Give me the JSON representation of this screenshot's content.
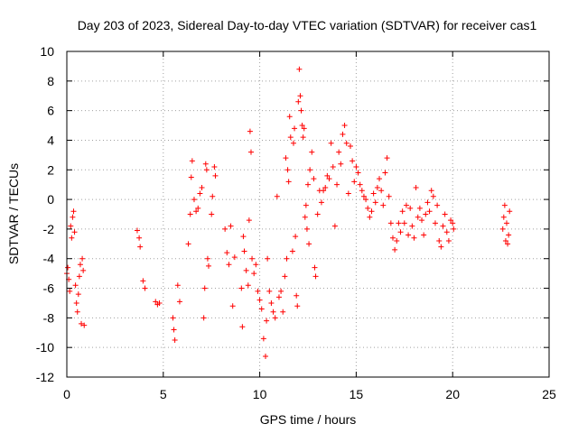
{
  "chart_data": {
    "type": "scatter",
    "title": "Day 203 of 2023, Sidereal Day-to-day VTEC variation (SDTVAR) for receiver cas1",
    "xlabel": "GPS time / hours",
    "ylabel": "SDTVAR / TECUs",
    "xlim": [
      0,
      25
    ],
    "ylim": [
      -12,
      10
    ],
    "x_ticks": [
      "0",
      "5",
      "10",
      "15",
      "20",
      "25"
    ],
    "y_ticks": [
      "10",
      "8",
      "6",
      "4",
      "2",
      "0",
      "-2",
      "-4",
      "-6",
      "-8",
      "-10",
      "-12"
    ],
    "grid": true,
    "marker": "+",
    "series": [
      {
        "name": "SDTVAR",
        "color": "#ff0000",
        "segments": [
          {
            "x": 0.0,
            "y": -5.0
          },
          {
            "x": 0.05,
            "y": -4.6
          },
          {
            "x": 0.1,
            "y": -5.4
          },
          {
            "x": 0.15,
            "y": -6.2
          },
          {
            "x": 0.2,
            "y": -1.8
          },
          {
            "x": 0.25,
            "y": -2.6
          },
          {
            "x": 0.3,
            "y": -1.2
          },
          {
            "x": 0.35,
            "y": -0.8
          },
          {
            "x": 0.4,
            "y": -2.2
          },
          {
            "x": 0.45,
            "y": -5.8
          },
          {
            "x": 0.5,
            "y": -7.0
          },
          {
            "x": 0.55,
            "y": -7.6
          },
          {
            "x": 0.6,
            "y": -6.4
          },
          {
            "x": 0.65,
            "y": -5.2
          },
          {
            "x": 0.7,
            "y": -4.4
          },
          {
            "x": 0.75,
            "y": -8.4
          },
          {
            "x": 0.8,
            "y": -4.0
          },
          {
            "x": 0.85,
            "y": -4.8
          },
          {
            "x": 0.9,
            "y": -8.5
          },
          {
            "x": 3.65,
            "y": -2.1
          },
          {
            "x": 3.75,
            "y": -2.6
          },
          {
            "x": 3.8,
            "y": -3.2
          },
          {
            "x": 3.95,
            "y": -5.5
          },
          {
            "x": 4.05,
            "y": -6.0
          },
          {
            "x": 4.6,
            "y": -6.9
          },
          {
            "x": 4.7,
            "y": -7.1
          },
          {
            "x": 4.8,
            "y": -7.0
          },
          {
            "x": 5.5,
            "y": -8.0
          },
          {
            "x": 5.55,
            "y": -8.8
          },
          {
            "x": 5.6,
            "y": -9.5
          },
          {
            "x": 5.75,
            "y": -5.8
          },
          {
            "x": 5.85,
            "y": -6.9
          },
          {
            "x": 6.3,
            "y": -3.0
          },
          {
            "x": 6.4,
            "y": -1.0
          },
          {
            "x": 6.45,
            "y": 1.5
          },
          {
            "x": 6.5,
            "y": 2.6
          },
          {
            "x": 6.6,
            "y": 0.0
          },
          {
            "x": 6.7,
            "y": -0.8
          },
          {
            "x": 6.8,
            "y": -0.6
          },
          {
            "x": 6.9,
            "y": 0.4
          },
          {
            "x": 7.0,
            "y": 0.8
          },
          {
            "x": 7.1,
            "y": -8.0
          },
          {
            "x": 7.15,
            "y": -6.0
          },
          {
            "x": 7.2,
            "y": 2.4
          },
          {
            "x": 7.25,
            "y": 2.0
          },
          {
            "x": 7.3,
            "y": -4.0
          },
          {
            "x": 7.35,
            "y": -4.5
          },
          {
            "x": 7.5,
            "y": -1.0
          },
          {
            "x": 7.55,
            "y": 0.2
          },
          {
            "x": 7.65,
            "y": 2.2
          },
          {
            "x": 7.7,
            "y": 1.6
          },
          {
            "x": 8.2,
            "y": -2.0
          },
          {
            "x": 8.3,
            "y": -3.6
          },
          {
            "x": 8.4,
            "y": -4.4
          },
          {
            "x": 8.5,
            "y": -1.8
          },
          {
            "x": 8.6,
            "y": -7.2
          },
          {
            "x": 8.7,
            "y": -3.9
          },
          {
            "x": 9.05,
            "y": -6.0
          },
          {
            "x": 9.1,
            "y": -8.6
          },
          {
            "x": 9.15,
            "y": -2.5
          },
          {
            "x": 9.2,
            "y": -3.5
          },
          {
            "x": 9.3,
            "y": -4.8
          },
          {
            "x": 9.4,
            "y": -5.8
          },
          {
            "x": 9.45,
            "y": -1.4
          },
          {
            "x": 9.5,
            "y": 4.6
          },
          {
            "x": 9.55,
            "y": 3.2
          },
          {
            "x": 9.6,
            "y": -4.0
          },
          {
            "x": 9.7,
            "y": -5.0
          },
          {
            "x": 9.8,
            "y": -4.4
          },
          {
            "x": 9.9,
            "y": -6.2
          },
          {
            "x": 10.0,
            "y": -6.8
          },
          {
            "x": 10.1,
            "y": -7.4
          },
          {
            "x": 10.2,
            "y": -9.4
          },
          {
            "x": 10.3,
            "y": -10.6
          },
          {
            "x": 10.35,
            "y": -8.2
          },
          {
            "x": 10.4,
            "y": -4.0
          },
          {
            "x": 10.5,
            "y": -6.2
          },
          {
            "x": 10.6,
            "y": -7.0
          },
          {
            "x": 10.7,
            "y": -7.6
          },
          {
            "x": 10.8,
            "y": -8.0
          },
          {
            "x": 10.9,
            "y": 0.2
          },
          {
            "x": 11.0,
            "y": -6.6
          },
          {
            "x": 11.1,
            "y": -6.2
          },
          {
            "x": 11.2,
            "y": -7.6
          },
          {
            "x": 11.3,
            "y": -5.2
          },
          {
            "x": 11.35,
            "y": 2.8
          },
          {
            "x": 11.4,
            "y": -4.0
          },
          {
            "x": 11.45,
            "y": 2.0
          },
          {
            "x": 11.5,
            "y": 1.2
          },
          {
            "x": 11.55,
            "y": 5.6
          },
          {
            "x": 11.6,
            "y": 4.2
          },
          {
            "x": 11.7,
            "y": -3.5
          },
          {
            "x": 11.75,
            "y": 3.8
          },
          {
            "x": 11.8,
            "y": 4.8
          },
          {
            "x": 11.85,
            "y": -2.5
          },
          {
            "x": 11.9,
            "y": -6.5
          },
          {
            "x": 11.95,
            "y": -7.2
          },
          {
            "x": 12.0,
            "y": 6.6
          },
          {
            "x": 12.05,
            "y": 8.8
          },
          {
            "x": 12.1,
            "y": 7.0
          },
          {
            "x": 12.15,
            "y": 6.0
          },
          {
            "x": 12.2,
            "y": 5.0
          },
          {
            "x": 12.25,
            "y": 4.2
          },
          {
            "x": 12.3,
            "y": 4.8
          },
          {
            "x": 12.35,
            "y": -1.2
          },
          {
            "x": 12.4,
            "y": -0.4
          },
          {
            "x": 12.45,
            "y": -2.0
          },
          {
            "x": 12.5,
            "y": 1.0
          },
          {
            "x": 12.55,
            "y": -3.0
          },
          {
            "x": 12.6,
            "y": 2.0
          },
          {
            "x": 12.7,
            "y": 3.2
          },
          {
            "x": 12.8,
            "y": 1.4
          },
          {
            "x": 12.85,
            "y": -4.6
          },
          {
            "x": 12.9,
            "y": -5.2
          },
          {
            "x": 13.0,
            "y": -1.0
          },
          {
            "x": 13.1,
            "y": 0.6
          },
          {
            "x": 13.2,
            "y": -0.2
          },
          {
            "x": 13.3,
            "y": 0.6
          },
          {
            "x": 13.4,
            "y": 0.8
          },
          {
            "x": 13.5,
            "y": 1.6
          },
          {
            "x": 13.6,
            "y": 1.4
          },
          {
            "x": 13.7,
            "y": 3.8
          },
          {
            "x": 13.8,
            "y": 2.2
          },
          {
            "x": 13.9,
            "y": -1.8
          },
          {
            "x": 14.0,
            "y": 1.0
          },
          {
            "x": 14.1,
            "y": 3.2
          },
          {
            "x": 14.2,
            "y": 2.4
          },
          {
            "x": 14.3,
            "y": 4.4
          },
          {
            "x": 14.4,
            "y": 5.0
          },
          {
            "x": 14.5,
            "y": 3.8
          },
          {
            "x": 14.6,
            "y": 0.4
          },
          {
            "x": 14.7,
            "y": 3.6
          },
          {
            "x": 14.8,
            "y": 2.6
          },
          {
            "x": 14.9,
            "y": 1.2
          },
          {
            "x": 15.0,
            "y": 2.2
          },
          {
            "x": 15.1,
            "y": 1.8
          },
          {
            "x": 15.2,
            "y": 1.0
          },
          {
            "x": 15.3,
            "y": 0.6
          },
          {
            "x": 15.4,
            "y": 0.2
          },
          {
            "x": 15.5,
            "y": 0.0
          },
          {
            "x": 15.6,
            "y": -0.6
          },
          {
            "x": 15.7,
            "y": -1.2
          },
          {
            "x": 15.8,
            "y": -0.8
          },
          {
            "x": 15.9,
            "y": 0.4
          },
          {
            "x": 16.0,
            "y": -0.2
          },
          {
            "x": 16.1,
            "y": 0.8
          },
          {
            "x": 16.2,
            "y": 1.4
          },
          {
            "x": 16.3,
            "y": 0.6
          },
          {
            "x": 16.4,
            "y": -0.4
          },
          {
            "x": 16.5,
            "y": 1.8
          },
          {
            "x": 16.6,
            "y": 2.8
          },
          {
            "x": 16.7,
            "y": 0.2
          },
          {
            "x": 16.8,
            "y": -1.6
          },
          {
            "x": 16.9,
            "y": -2.6
          },
          {
            "x": 17.0,
            "y": -3.4
          },
          {
            "x": 17.1,
            "y": -2.8
          },
          {
            "x": 17.2,
            "y": -1.6
          },
          {
            "x": 17.3,
            "y": -2.2
          },
          {
            "x": 17.4,
            "y": -0.8
          },
          {
            "x": 17.5,
            "y": -1.6
          },
          {
            "x": 17.6,
            "y": -0.4
          },
          {
            "x": 17.7,
            "y": -2.4
          },
          {
            "x": 17.8,
            "y": -0.6
          },
          {
            "x": 17.9,
            "y": -1.8
          },
          {
            "x": 18.0,
            "y": -2.6
          },
          {
            "x": 18.1,
            "y": 0.8
          },
          {
            "x": 18.2,
            "y": -1.2
          },
          {
            "x": 18.3,
            "y": -0.6
          },
          {
            "x": 18.4,
            "y": -1.4
          },
          {
            "x": 18.5,
            "y": -2.4
          },
          {
            "x": 18.6,
            "y": -1.0
          },
          {
            "x": 18.7,
            "y": -0.2
          },
          {
            "x": 18.8,
            "y": -0.8
          },
          {
            "x": 18.9,
            "y": 0.6
          },
          {
            "x": 19.0,
            "y": 0.2
          },
          {
            "x": 19.1,
            "y": -1.6
          },
          {
            "x": 19.2,
            "y": -0.4
          },
          {
            "x": 19.3,
            "y": -2.8
          },
          {
            "x": 19.4,
            "y": -3.2
          },
          {
            "x": 19.5,
            "y": -1.8
          },
          {
            "x": 19.6,
            "y": -1.0
          },
          {
            "x": 19.7,
            "y": -2.2
          },
          {
            "x": 19.8,
            "y": -2.8
          },
          {
            "x": 19.9,
            "y": -1.4
          },
          {
            "x": 20.0,
            "y": -1.6
          },
          {
            "x": 20.05,
            "y": -2.0
          },
          {
            "x": 22.6,
            "y": -2.0
          },
          {
            "x": 22.65,
            "y": -1.2
          },
          {
            "x": 22.7,
            "y": -0.4
          },
          {
            "x": 22.75,
            "y": -2.8
          },
          {
            "x": 22.8,
            "y": -1.6
          },
          {
            "x": 22.85,
            "y": -3.0
          },
          {
            "x": 22.9,
            "y": -2.4
          },
          {
            "x": 22.95,
            "y": -0.8
          }
        ]
      }
    ]
  }
}
